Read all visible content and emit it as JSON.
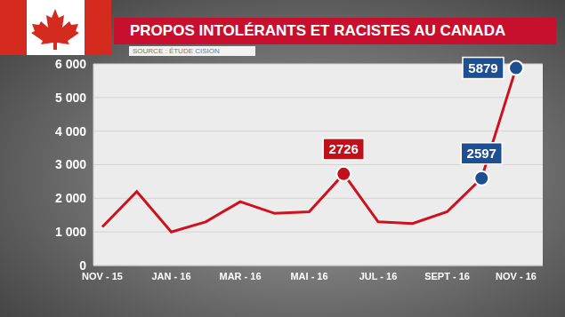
{
  "chart_data": {
    "type": "line",
    "title": "PROPOS INTOLÉRANTS ET RACISTES AU CANADA",
    "subtitle": "SOURCE : ÉTUDE CISION",
    "categories": [
      "NOV - 15",
      null,
      "JAN - 16",
      null,
      "MAR - 16",
      null,
      "MAI - 16",
      null,
      "JUL - 16",
      null,
      "SEPT - 16",
      null,
      "NOV - 16"
    ],
    "values": [
      1150,
      2200,
      1000,
      1300,
      1900,
      1550,
      1600,
      2726,
      1300,
      1250,
      1600,
      2597,
      5879
    ],
    "color": "#d0101c",
    "ylim": [
      0,
      6000
    ],
    "yticks": [
      0,
      {
        "value": 1000,
        "label": "1 000"
      },
      {
        "value": 2000,
        "label": "2 000"
      },
      {
        "value": 3000,
        "label": "3 000"
      },
      {
        "value": 4000,
        "label": "4 000"
      },
      {
        "value": 5000,
        "label": "5 000"
      },
      {
        "value": 6000,
        "label": "6 000"
      }
    ],
    "grid": true,
    "annotations": [
      {
        "value": 2726,
        "label": "2726",
        "color": "#c0111b"
      },
      {
        "value": 2597,
        "label": "2597",
        "color": "#1d4f91"
      },
      {
        "value": 5879,
        "label": "5879",
        "color": "#1d4f91"
      }
    ]
  }
}
